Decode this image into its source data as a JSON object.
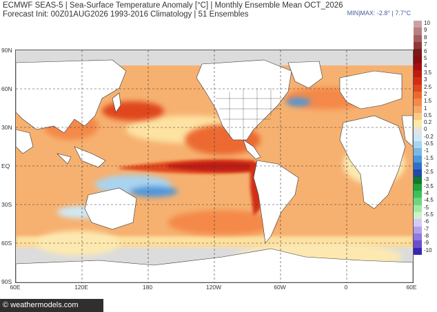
{
  "header": {
    "title_line1": "ECMWF SEAS-5 | Sea-Surface Temperature Anomaly [°C] | Monthly Ensemble Mean OCT_2026",
    "title_line2": "Forecast Init: 00Z01AUG2026     1993-2016 Climatology | 51 Ensembles",
    "minmax": "MIN|MAX: -2.8° | 7.7°C"
  },
  "map": {
    "lat_labels": [
      "90N",
      "60N",
      "30N",
      "EQ",
      "30S",
      "60S",
      "90S"
    ],
    "lon_labels": [
      "60E",
      "120E",
      "180",
      "120W",
      "60W",
      "0",
      "60E"
    ]
  },
  "colorbar": {
    "levels": [
      {
        "label": "10",
        "color": "#c9a3a3"
      },
      {
        "label": "9",
        "color": "#b88080"
      },
      {
        "label": "8",
        "color": "#a45e5e"
      },
      {
        "label": "7",
        "color": "#8e3a3a"
      },
      {
        "label": "6",
        "color": "#7a1a1a"
      },
      {
        "label": "5",
        "color": "#8b0d0d"
      },
      {
        "label": "4",
        "color": "#a41010"
      },
      {
        "label": "3.5",
        "color": "#bf1b12"
      },
      {
        "label": "3",
        "color": "#d22d16"
      },
      {
        "label": "2.5",
        "color": "#e0461f"
      },
      {
        "label": "2",
        "color": "#ec6a30"
      },
      {
        "label": "1.5",
        "color": "#f4894a"
      },
      {
        "label": "1",
        "color": "#f9a868"
      },
      {
        "label": "0.5",
        "color": "#fcc883"
      },
      {
        "label": "0.2",
        "color": "#feeaa3"
      },
      {
        "label": "0",
        "color": "#e4e4e4"
      },
      {
        "label": "-0.2",
        "color": "#cfe8f5"
      },
      {
        "label": "-0.5",
        "color": "#a9d4ef"
      },
      {
        "label": "-1",
        "color": "#78b8e6"
      },
      {
        "label": "-1.5",
        "color": "#4f97d9"
      },
      {
        "label": "-2",
        "color": "#2f70c8"
      },
      {
        "label": "-2.5",
        "color": "#1f4aa8"
      },
      {
        "label": "-3",
        "color": "#0e7a2a"
      },
      {
        "label": "-3.5",
        "color": "#1fa33c"
      },
      {
        "label": "-4",
        "color": "#3fc05a"
      },
      {
        "label": "-4.5",
        "color": "#6fd67c"
      },
      {
        "label": "-5",
        "color": "#a3e8a3"
      },
      {
        "label": "-5.5",
        "color": "#cdf2c9"
      },
      {
        "label": "-6",
        "color": "#d7c9f3"
      },
      {
        "label": "-7",
        "color": "#b3a0ec"
      },
      {
        "label": "-8",
        "color": "#8f78e0"
      },
      {
        "label": "-9",
        "color": "#6a50d0"
      },
      {
        "label": "-10",
        "color": "#3a25b0"
      }
    ]
  },
  "footer": {
    "credit": "© weathermodels.com"
  }
}
